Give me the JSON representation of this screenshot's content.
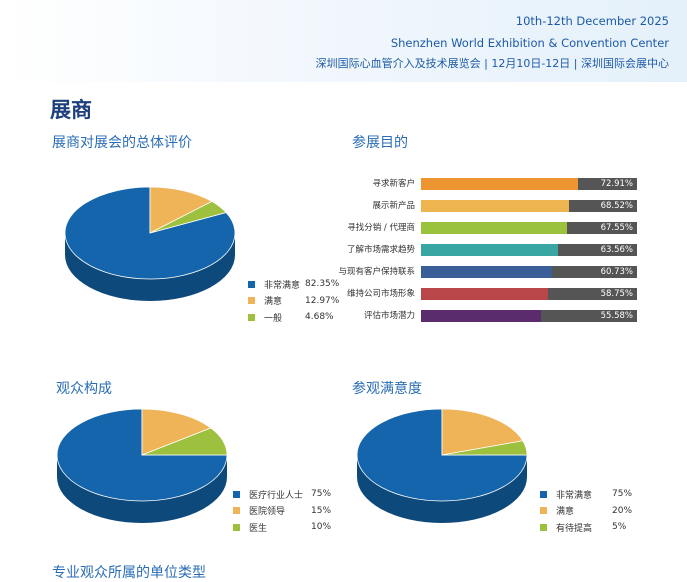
{
  "header": {
    "dates": "10th-12th December 2025",
    "venue": "Shenzhen World Exhibition & Convention Center",
    "cn_line": "深圳国际心血管介入及技术展览会 | 12月10日-12日 | 深圳国际会展中心"
  },
  "page_title": "展商",
  "sections": {
    "exhibitor_eval": "展商对展会的总体评价",
    "purpose": "参展目的",
    "audience": "观众构成",
    "visitor_satisfaction": "参观满意度",
    "unit_type": "专业观众所属的单位类型"
  },
  "colors": {
    "blue": "#1465ab",
    "orange": "#eeb457",
    "green": "#9dc03f",
    "header_blue": "#1c5aa8",
    "bar_track": "#555555"
  },
  "chart_data": [
    {
      "type": "pie",
      "title": "展商对展会的总体评价",
      "slices": [
        {
          "label": "非常满意",
          "value": 82.35,
          "display": "82.35%",
          "color": "#1465ab"
        },
        {
          "label": "满意",
          "value": 12.97,
          "display": "12.97%",
          "color": "#eeb457"
        },
        {
          "label": "一般",
          "value": 4.68,
          "display": "4.68%",
          "color": "#9dc03f"
        }
      ]
    },
    {
      "type": "bar",
      "title": "参展目的",
      "categories": [
        "寻求新客户",
        "展示新产品",
        "寻找分销 / 代理商",
        "了解市场需求趋势",
        "与现有客户保持联系",
        "维持公司市场形象",
        "评估市场潜力"
      ],
      "values": [
        72.91,
        68.52,
        67.55,
        63.56,
        60.73,
        58.75,
        55.58
      ],
      "display": [
        "72.91%",
        "68.52%",
        "67.55%",
        "63.56%",
        "60.73%",
        "58.75%",
        "55.58%"
      ],
      "colors": [
        "#ec9530",
        "#edb44f",
        "#9bc23c",
        "#3aa6a4",
        "#3a5f98",
        "#b9474a",
        "#5a2c6e"
      ],
      "xlim": [
        0,
        100
      ]
    },
    {
      "type": "pie",
      "title": "观众构成",
      "slices": [
        {
          "label": "医疗行业人士",
          "value": 75,
          "display": "75%",
          "color": "#1465ab"
        },
        {
          "label": "医院领导",
          "value": 15,
          "display": "15%",
          "color": "#eeb457"
        },
        {
          "label": "医生",
          "value": 10,
          "display": "10%",
          "color": "#9dc03f"
        }
      ]
    },
    {
      "type": "pie",
      "title": "参观满意度",
      "slices": [
        {
          "label": "非常满意",
          "value": 75,
          "display": "75%",
          "color": "#1465ab"
        },
        {
          "label": "满意",
          "value": 20,
          "display": "20%",
          "color": "#eeb457"
        },
        {
          "label": "有待提高",
          "value": 5,
          "display": "5%",
          "color": "#9dc03f"
        }
      ]
    }
  ]
}
